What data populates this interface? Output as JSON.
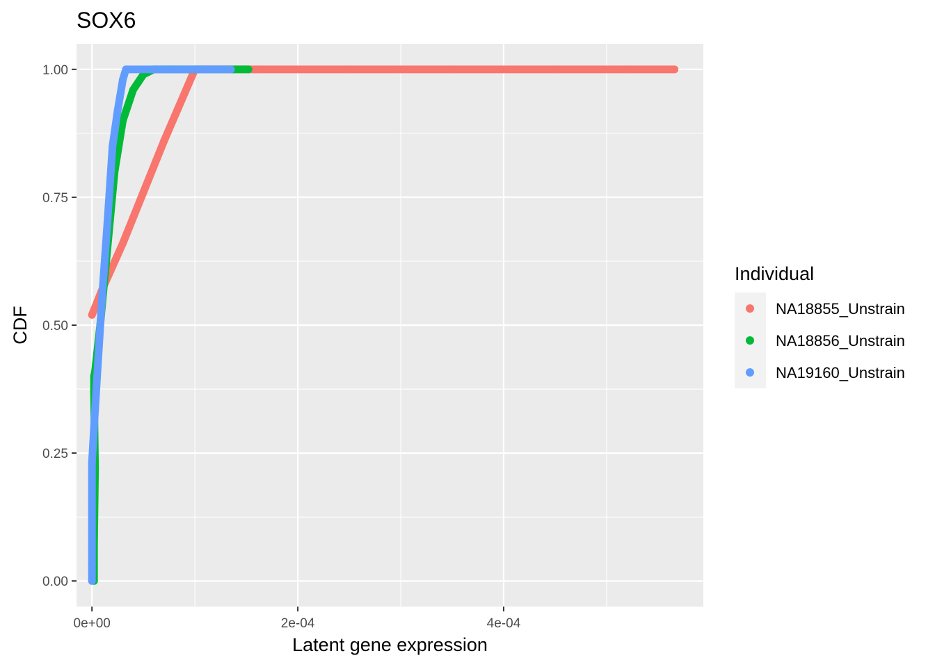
{
  "chart_data": {
    "type": "scatter",
    "title": "SOX6",
    "xlabel": "Latent gene expression",
    "ylabel": "CDF",
    "xlim": [
      -1.5e-05,
      0.000594
    ],
    "ylim": [
      -0.05,
      1.05
    ],
    "x_ticks": [
      0,
      0.0002,
      0.0004
    ],
    "x_tick_labels": [
      "0e+00",
      "2e-04",
      "4e-04"
    ],
    "y_ticks": [
      0,
      0.25,
      0.5,
      0.75,
      1.0
    ],
    "y_tick_labels": [
      "0.00",
      "0.25",
      "0.50",
      "0.75",
      "1.00"
    ],
    "grid": true,
    "legend": {
      "title": "Individual",
      "position": "right"
    },
    "series": [
      {
        "name": "NA18855_Unstrain",
        "color": "#F8766D",
        "x": [
          0.0,
          1e-05,
          3e-05,
          5e-05,
          7e-05,
          0.0001,
          0.00016,
          0.00025,
          0.00035,
          0.00045,
          0.00052,
          0.000566
        ],
        "y": [
          0.52,
          0.57,
          0.66,
          0.76,
          0.86,
          1.0,
          1.0,
          1.0,
          1.0,
          1.0,
          1.0,
          1.0
        ]
      },
      {
        "name": "NA18856_Unstrain",
        "color": "#00BA38",
        "x": [
          2e-06,
          2e-06,
          3e-06,
          2e-06,
          2e-06,
          3e-06,
          8e-06,
          1.5e-05,
          2.2e-05,
          3e-05,
          4e-05,
          4.5e-05,
          5e-05,
          6e-05,
          8e-05,
          0.0001,
          0.00013,
          0.000152
        ],
        "y": [
          0.0,
          0.07,
          0.22,
          0.37,
          0.4,
          0.41,
          0.5,
          0.65,
          0.8,
          0.9,
          0.96,
          0.975,
          0.99,
          1.0,
          1.0,
          1.0,
          1.0,
          1.0
        ]
      },
      {
        "name": "NA19160_Unstrain",
        "color": "#619CFF",
        "x": [
          0.0,
          0.0,
          0.0,
          0.0,
          0.0,
          0.0,
          0.0,
          0.0,
          1e-06,
          2e-06,
          5e-06,
          1e-05,
          1.5e-05,
          2e-05,
          2.5e-05,
          3e-05,
          3.3e-05,
          5e-05,
          8e-05,
          0.00011,
          0.000135
        ],
        "y": [
          0.0,
          0.033,
          0.066,
          0.099,
          0.132,
          0.165,
          0.198,
          0.231,
          0.265,
          0.3,
          0.4,
          0.56,
          0.7,
          0.85,
          0.92,
          0.98,
          1.0,
          1.0,
          1.0,
          1.0,
          1.0
        ]
      }
    ]
  }
}
